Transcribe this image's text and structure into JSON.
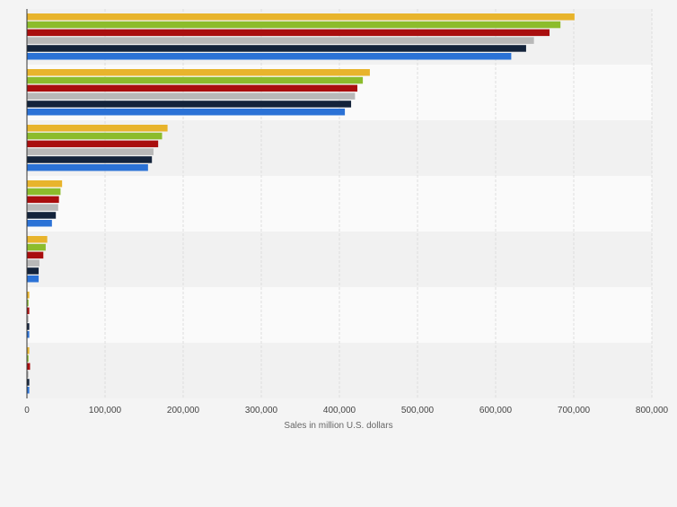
{
  "chart_data": {
    "type": "bar",
    "orientation": "horizontal",
    "xlabel": "Sales in million U.S. dollars",
    "ylabel": "",
    "xlim": [
      0,
      800000
    ],
    "xticks": [
      0,
      100000,
      200000,
      300000,
      400000,
      500000,
      600000,
      700000,
      800000
    ],
    "xtick_labels": [
      "0",
      "100,000",
      "200,000",
      "300,000",
      "400,000",
      "500,000",
      "600,000",
      "700,000",
      "800,000"
    ],
    "grid": true,
    "legend": "none",
    "categories": [
      "",
      "",
      "",
      "",
      "",
      "",
      ""
    ],
    "series": [
      {
        "color": "#e8b42c",
        "values": [
          701000,
          439000,
          180000,
          45000,
          26000,
          3000,
          3000
        ]
      },
      {
        "color": "#8cbc2c",
        "values": [
          683000,
          430000,
          173000,
          43000,
          24000,
          2000,
          2000
        ]
      },
      {
        "color": "#a90e0e",
        "values": [
          669000,
          423000,
          168000,
          41000,
          21000,
          3000,
          4000
        ]
      },
      {
        "color": "#b8b8b8",
        "values": [
          649000,
          420000,
          162000,
          40000,
          16000,
          2000,
          2000
        ]
      },
      {
        "color": "#13233b",
        "values": [
          639000,
          415000,
          160000,
          37000,
          15000,
          3000,
          3000
        ]
      },
      {
        "color": "#2b72d6",
        "values": [
          620000,
          407000,
          155000,
          32000,
          15000,
          3000,
          3000
        ]
      }
    ]
  }
}
